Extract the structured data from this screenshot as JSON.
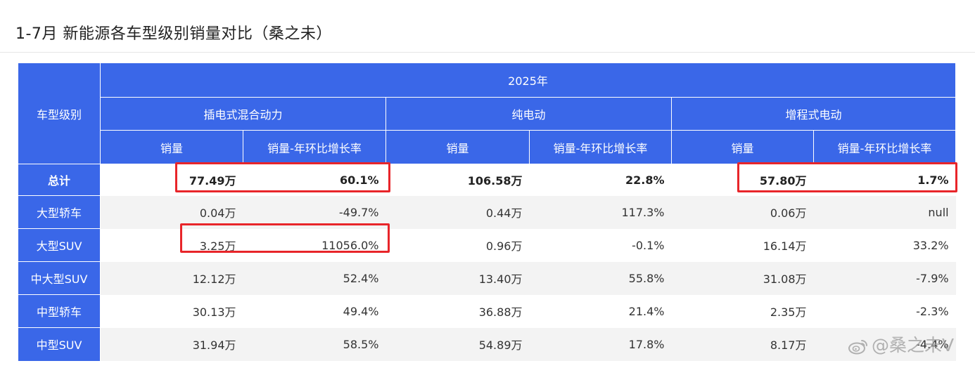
{
  "title": "1-7月 新能源各车型级别销量对比（桑之未）",
  "chart_data": {
    "type": "table",
    "title": "1-7月 新能源各车型级别销量对比（桑之未）",
    "row_header_label": "车型级别",
    "year_label": "2025年",
    "groups": [
      "插电式混合动力",
      "纯电动",
      "增程式电动"
    ],
    "sub_columns": [
      "销量",
      "销量-年环比增长率"
    ],
    "rows": [
      {
        "label": "总计",
        "bold": true,
        "values": [
          "77.49万",
          "60.1%",
          "106.58万",
          "22.8%",
          "57.80万",
          "1.7%"
        ]
      },
      {
        "label": "大型轿车",
        "bold": false,
        "values": [
          "0.04万",
          "-49.7%",
          "0.44万",
          "117.3%",
          "0.06万",
          "null"
        ]
      },
      {
        "label": "大型SUV",
        "bold": false,
        "values": [
          "3.25万",
          "11056.0%",
          "0.96万",
          "-0.1%",
          "16.14万",
          "33.2%"
        ]
      },
      {
        "label": "中大型SUV",
        "bold": false,
        "values": [
          "12.12万",
          "52.4%",
          "13.40万",
          "55.8%",
          "31.08万",
          "-7.9%"
        ]
      },
      {
        "label": "中型轿车",
        "bold": false,
        "values": [
          "30.13万",
          "49.4%",
          "36.88万",
          "21.4%",
          "2.35万",
          "-2.3%"
        ]
      },
      {
        "label": "中型SUV",
        "bold": false,
        "values": [
          "31.94万",
          "58.5%",
          "54.89万",
          "17.8%",
          "8.17万",
          "-4.4%"
        ]
      }
    ],
    "highlight_color": "#e8252a",
    "header_color": "#3a67e8"
  },
  "watermark": "@桑之未V"
}
